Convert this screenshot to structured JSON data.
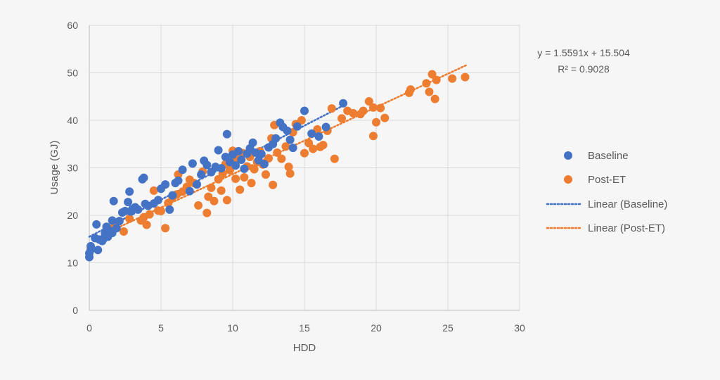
{
  "chart_data": {
    "type": "scatter",
    "title": "",
    "xlabel": "HDD",
    "ylabel": "Usage (GJ)",
    "xlim": [
      0,
      30
    ],
    "ylim": [
      0,
      60
    ],
    "x_ticks": [
      "0",
      "5",
      "10",
      "15",
      "20",
      "25",
      "30"
    ],
    "y_ticks": [
      "0",
      "10",
      "20",
      "30",
      "40",
      "50",
      "60"
    ],
    "grid": true,
    "legend_position": "right",
    "series": [
      {
        "name": "Baseline",
        "color": "#4472c4",
        "marker": "circle",
        "points": [
          [
            0.0,
            11.2
          ],
          [
            0.0,
            12.0
          ],
          [
            0.1,
            12.8
          ],
          [
            0.1,
            13.5
          ],
          [
            0.4,
            15.2
          ],
          [
            0.5,
            18.1
          ],
          [
            0.6,
            12.7
          ],
          [
            0.7,
            14.9
          ],
          [
            0.9,
            14.6
          ],
          [
            1.0,
            15.1
          ],
          [
            1.1,
            16.2
          ],
          [
            1.2,
            17.6
          ],
          [
            1.3,
            15.5
          ],
          [
            1.4,
            16.8
          ],
          [
            1.6,
            16.3
          ],
          [
            1.6,
            18.9
          ],
          [
            1.7,
            23.0
          ],
          [
            1.9,
            17.3
          ],
          [
            2.1,
            18.8
          ],
          [
            2.3,
            20.6
          ],
          [
            2.5,
            20.9
          ],
          [
            2.7,
            22.8
          ],
          [
            2.8,
            25.0
          ],
          [
            2.9,
            20.8
          ],
          [
            3.0,
            21.3
          ],
          [
            3.2,
            21.7
          ],
          [
            3.4,
            21.2
          ],
          [
            3.7,
            27.6
          ],
          [
            3.8,
            27.9
          ],
          [
            3.9,
            22.4
          ],
          [
            4.1,
            22.0
          ],
          [
            4.5,
            22.5
          ],
          [
            4.8,
            23.2
          ],
          [
            5.0,
            25.6
          ],
          [
            5.3,
            26.5
          ],
          [
            5.6,
            21.2
          ],
          [
            5.8,
            24.2
          ],
          [
            6.0,
            26.8
          ],
          [
            6.2,
            27.3
          ],
          [
            6.5,
            29.6
          ],
          [
            7.0,
            25.1
          ],
          [
            7.2,
            30.9
          ],
          [
            7.5,
            26.5
          ],
          [
            7.8,
            28.6
          ],
          [
            8.0,
            31.5
          ],
          [
            8.2,
            30.6
          ],
          [
            8.5,
            29.1
          ],
          [
            8.8,
            30.2
          ],
          [
            9.0,
            33.7
          ],
          [
            9.2,
            29.9
          ],
          [
            9.5,
            32.3
          ],
          [
            9.6,
            37.1
          ],
          [
            9.8,
            31.2
          ],
          [
            10.0,
            32.8
          ],
          [
            10.2,
            30.5
          ],
          [
            10.4,
            33.5
          ],
          [
            10.6,
            31.7
          ],
          [
            10.8,
            29.8
          ],
          [
            11.0,
            33.0
          ],
          [
            11.2,
            34.1
          ],
          [
            11.4,
            35.3
          ],
          [
            11.6,
            33.2
          ],
          [
            11.8,
            31.6
          ],
          [
            12.0,
            32.9
          ],
          [
            12.2,
            30.8
          ],
          [
            12.5,
            34.3
          ],
          [
            12.8,
            35.0
          ],
          [
            13.0,
            36.2
          ],
          [
            13.3,
            39.5
          ],
          [
            13.5,
            38.6
          ],
          [
            13.8,
            37.8
          ],
          [
            14.0,
            35.9
          ],
          [
            14.2,
            34.2
          ],
          [
            14.5,
            38.7
          ],
          [
            15.0,
            42.0
          ],
          [
            15.5,
            37.2
          ],
          [
            16.0,
            36.6
          ],
          [
            16.5,
            38.6
          ],
          [
            17.7,
            43.6
          ]
        ],
        "trendline": {
          "name": "Linear (Baseline)",
          "slope": 1.5591,
          "intercept": 15.504,
          "x_range": [
            0,
            17.8
          ]
        }
      },
      {
        "name": "Post-ET",
        "color": "#ed7d31",
        "marker": "circle",
        "points": [
          [
            1.7,
            17.4
          ],
          [
            2.4,
            16.6
          ],
          [
            2.8,
            19.3
          ],
          [
            3.6,
            18.9
          ],
          [
            3.8,
            19.6
          ],
          [
            4.0,
            18.0
          ],
          [
            4.2,
            20.2
          ],
          [
            4.5,
            25.2
          ],
          [
            4.8,
            21.0
          ],
          [
            5.0,
            20.9
          ],
          [
            5.3,
            17.3
          ],
          [
            5.5,
            22.6
          ],
          [
            5.8,
            23.8
          ],
          [
            6.1,
            24.4
          ],
          [
            6.2,
            28.6
          ],
          [
            6.5,
            25.0
          ],
          [
            6.8,
            26.0
          ],
          [
            7.0,
            27.5
          ],
          [
            7.3,
            26.8
          ],
          [
            7.6,
            22.1
          ],
          [
            7.9,
            29.2
          ],
          [
            8.2,
            20.5
          ],
          [
            8.3,
            23.9
          ],
          [
            8.5,
            25.8
          ],
          [
            8.7,
            23.0
          ],
          [
            9.0,
            27.6
          ],
          [
            9.2,
            25.2
          ],
          [
            9.3,
            28.8
          ],
          [
            9.5,
            30.8
          ],
          [
            9.6,
            23.2
          ],
          [
            9.8,
            29.5
          ],
          [
            10.0,
            33.6
          ],
          [
            10.2,
            27.7
          ],
          [
            10.3,
            31.8
          ],
          [
            10.5,
            25.4
          ],
          [
            10.7,
            33.1
          ],
          [
            10.8,
            28.0
          ],
          [
            11.0,
            30.3
          ],
          [
            11.2,
            32.3
          ],
          [
            11.3,
            26.8
          ],
          [
            11.5,
            29.7
          ],
          [
            11.7,
            31.2
          ],
          [
            11.9,
            33.5
          ],
          [
            12.1,
            30.7
          ],
          [
            12.3,
            28.6
          ],
          [
            12.5,
            32.0
          ],
          [
            12.7,
            36.2
          ],
          [
            12.8,
            26.4
          ],
          [
            12.9,
            39.0
          ],
          [
            13.1,
            33.2
          ],
          [
            13.4,
            31.9
          ],
          [
            13.7,
            34.5
          ],
          [
            13.9,
            30.2
          ],
          [
            14.0,
            28.8
          ],
          [
            14.2,
            37.5
          ],
          [
            14.4,
            39.2
          ],
          [
            14.8,
            40.0
          ],
          [
            15.0,
            33.1
          ],
          [
            15.3,
            35.2
          ],
          [
            15.6,
            34.0
          ],
          [
            15.9,
            38.1
          ],
          [
            16.1,
            34.4
          ],
          [
            16.3,
            34.8
          ],
          [
            16.6,
            37.8
          ],
          [
            16.9,
            42.5
          ],
          [
            17.1,
            31.9
          ],
          [
            17.6,
            40.4
          ],
          [
            18.0,
            42.0
          ],
          [
            18.4,
            41.5
          ],
          [
            18.9,
            41.3
          ],
          [
            19.1,
            42.0
          ],
          [
            19.5,
            44.0
          ],
          [
            19.8,
            36.7
          ],
          [
            19.8,
            42.7
          ],
          [
            20.0,
            39.6
          ],
          [
            20.3,
            42.6
          ],
          [
            20.6,
            40.5
          ],
          [
            22.3,
            45.8
          ],
          [
            22.4,
            46.5
          ],
          [
            23.5,
            47.8
          ],
          [
            23.7,
            46.0
          ],
          [
            23.9,
            49.7
          ],
          [
            24.1,
            44.5
          ],
          [
            24.2,
            48.5
          ],
          [
            25.3,
            48.8
          ],
          [
            26.2,
            49.1
          ]
        ],
        "trendline": {
          "name": "Linear (Post-ET)",
          "slope": 1.4082,
          "intercept": 14.6,
          "x_range": [
            1.5,
            26.3
          ]
        }
      }
    ],
    "annotations": {
      "equation": "y = 1.5591x + 15.504",
      "r_squared": "R² = 0.9028"
    }
  }
}
